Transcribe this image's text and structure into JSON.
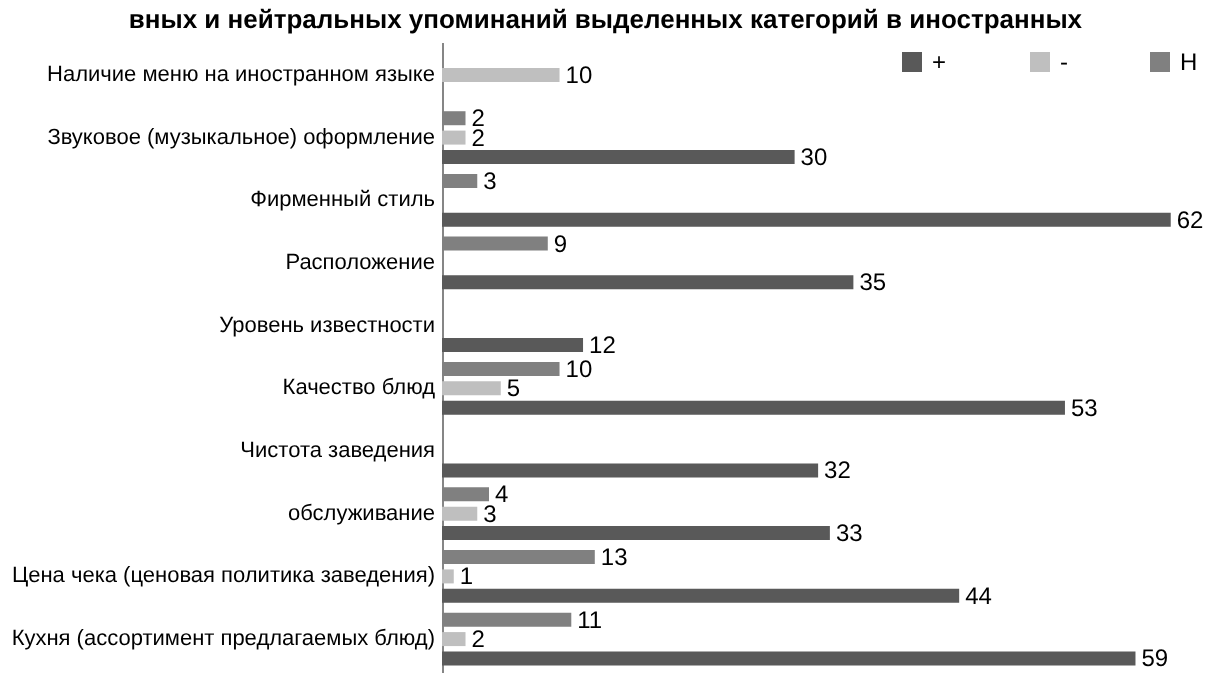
{
  "chart_data": {
    "type": "bar",
    "orientation": "horizontal",
    "title": "вных и нейтральных упоминаний выделенных категорий в  иностранных",
    "categories": [
      "Наличие меню на иностранном языке",
      "Звуковое (музыкальное) оформление",
      "Фирменный стиль",
      "Расположение",
      "Уровень известности",
      "Качество блюд",
      "Чистота заведения",
      "обслуживание",
      "Цена чека (ценовая политика  заведения)",
      "Кухня (ассортимент предлагаемых блюд)"
    ],
    "series": [
      {
        "name": "+",
        "color": "#595959",
        "values": [
          null,
          30,
          62,
          35,
          12,
          53,
          32,
          33,
          44,
          59
        ]
      },
      {
        "name": "-",
        "color": "#bfbfbf",
        "values": [
          10,
          2,
          null,
          null,
          null,
          5,
          null,
          3,
          1,
          2
        ]
      },
      {
        "name": "Н",
        "color": "#808080",
        "values": [
          null,
          2,
          3,
          9,
          null,
          10,
          null,
          4,
          13,
          11
        ]
      }
    ],
    "xlim": [
      0,
      65
    ],
    "data_labels": true,
    "legend": "top right",
    "grid": false,
    "tick_labels": "y"
  }
}
